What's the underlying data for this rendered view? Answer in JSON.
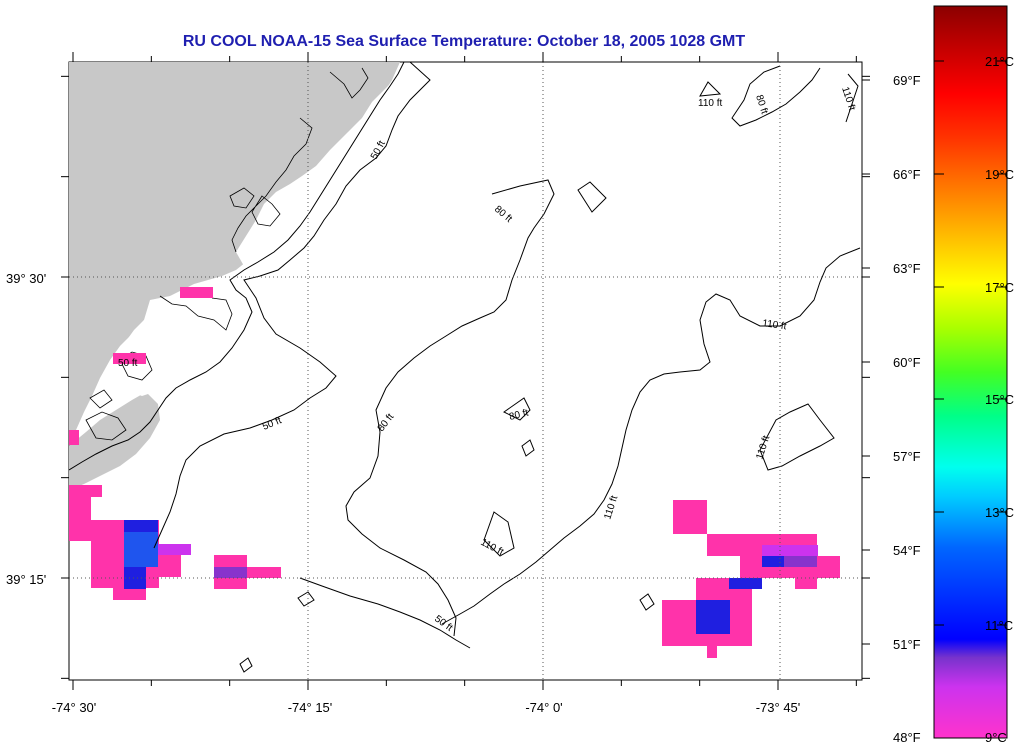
{
  "title": "RU COOL  NOAA-15  Sea Surface Temperature:  October 18, 2005 1028 GMT",
  "x_ticks": [
    "-74° 30'",
    "-74° 15'",
    "-74° 0'",
    "-73° 45'"
  ],
  "y_ticks": [
    "39° 30'",
    "39° 15'"
  ],
  "fahrenheit_ticks": [
    "69°F",
    "66°F",
    "63°F",
    "60°F",
    "57°F",
    "54°F",
    "51°F",
    "48°F"
  ],
  "celsius_ticks": [
    "21°C",
    "19°C",
    "17°C",
    "15°C",
    "13°C",
    "11°C",
    "9°C"
  ],
  "contour_labels": [
    "50 ft",
    "80 ft",
    "110 ft"
  ],
  "colors": {
    "title": "#1f1fb0",
    "land": "#c8c8c8",
    "sst_cold": "#ff33aa",
    "sst_blue": "#1f1fe0",
    "sst_violet": "#8833cc"
  }
}
